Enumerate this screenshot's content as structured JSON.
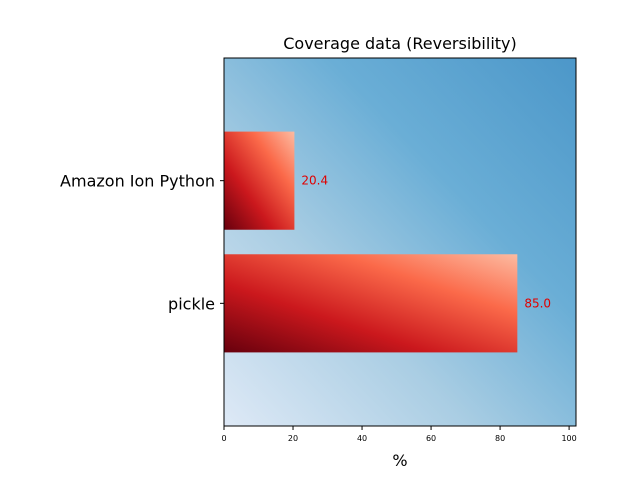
{
  "chart_data": {
    "type": "bar",
    "orientation": "horizontal",
    "title": "Coverage data (Reversibility)",
    "xlabel": "%",
    "ylabel": "",
    "categories": [
      "Amazon Ion Python",
      "pickle"
    ],
    "values": [
      20.4,
      85.0
    ],
    "value_labels": [
      "20.4",
      "85.0"
    ],
    "xlim": [
      0,
      102
    ],
    "xticks": [
      0,
      20,
      40,
      60,
      80,
      100
    ],
    "grid": false,
    "legend": "none",
    "value_label_color": "#e00000",
    "bar_gradient": [
      "#67000d",
      "#cb181d",
      "#fb6a4a",
      "#fcbba1"
    ],
    "background_gradient": [
      "#dee9f6",
      "#a9cde3",
      "#6aaed6",
      "#4c97c9"
    ]
  }
}
